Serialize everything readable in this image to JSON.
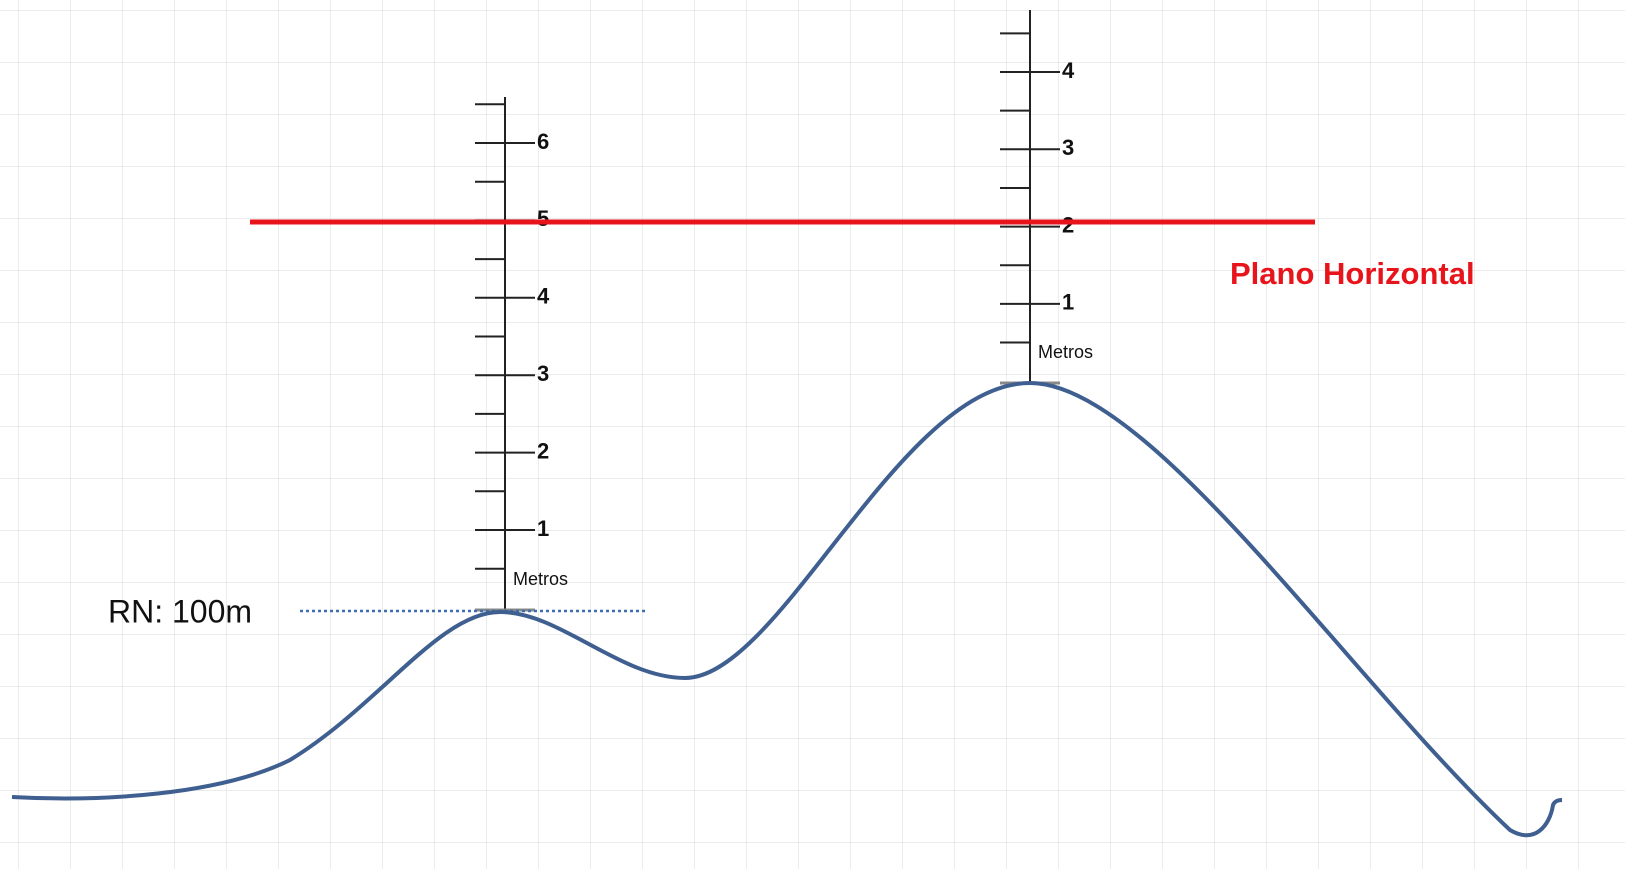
{
  "rod_left": {
    "labels": [
      "6",
      "5",
      "4",
      "3",
      "2",
      "1"
    ],
    "unit": "Metros"
  },
  "rod_right": {
    "labels": [
      "4",
      "3",
      "2",
      "1"
    ],
    "unit": "Metros"
  },
  "plane_label": "Plano Horizontal",
  "reference_label": "RN: 100m"
}
